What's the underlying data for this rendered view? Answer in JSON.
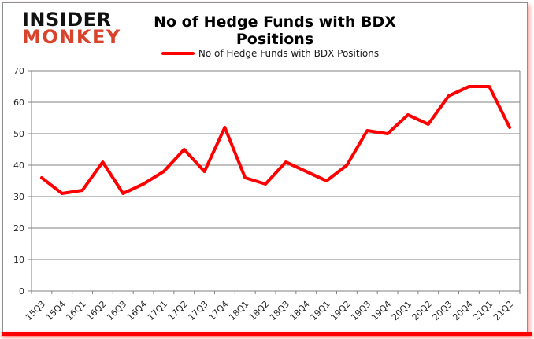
{
  "logo": {
    "line1": "INSIDER",
    "line2": "MONKEY",
    "line1_color": "#111111",
    "line2_color": "#d9432c"
  },
  "header": {
    "title": "No of Hedge Funds with BDX Positions"
  },
  "legend": {
    "label": "No of Hedge Funds with BDX Positions",
    "marker_color": "#FF0000"
  },
  "chart_data": {
    "type": "line",
    "title": "No of Hedge Funds with BDX Positions",
    "categories": [
      "15Q3",
      "15Q4",
      "16Q1",
      "16Q2",
      "16Q3",
      "16Q4",
      "17Q1",
      "17Q2",
      "17Q3",
      "17Q4",
      "18Q1",
      "18Q2",
      "18Q3",
      "18Q4",
      "19Q1",
      "19Q2",
      "19Q3",
      "19Q4",
      "20Q1",
      "20Q2",
      "20Q3",
      "20Q4",
      "21Q1",
      "21Q2"
    ],
    "series": [
      {
        "name": "No of Hedge Funds with BDX Positions",
        "color": "#FF0000",
        "values": [
          36,
          31,
          32,
          41,
          31,
          34,
          38,
          45,
          38,
          52,
          36,
          34,
          41,
          38,
          35,
          40,
          51,
          50,
          56,
          53,
          62,
          65,
          65,
          52
        ]
      }
    ],
    "xlabel": "",
    "ylabel": "",
    "ylim": [
      0,
      70
    ],
    "ytick_step": 10,
    "grid": true,
    "legend_position": "top",
    "grid_color": "#808080",
    "text_color": "#262626",
    "line_width": 4
  },
  "frame": {
    "background": "#ffffff",
    "border_color": "#8e8e8e",
    "accent_bar_color": "#ff0000"
  }
}
